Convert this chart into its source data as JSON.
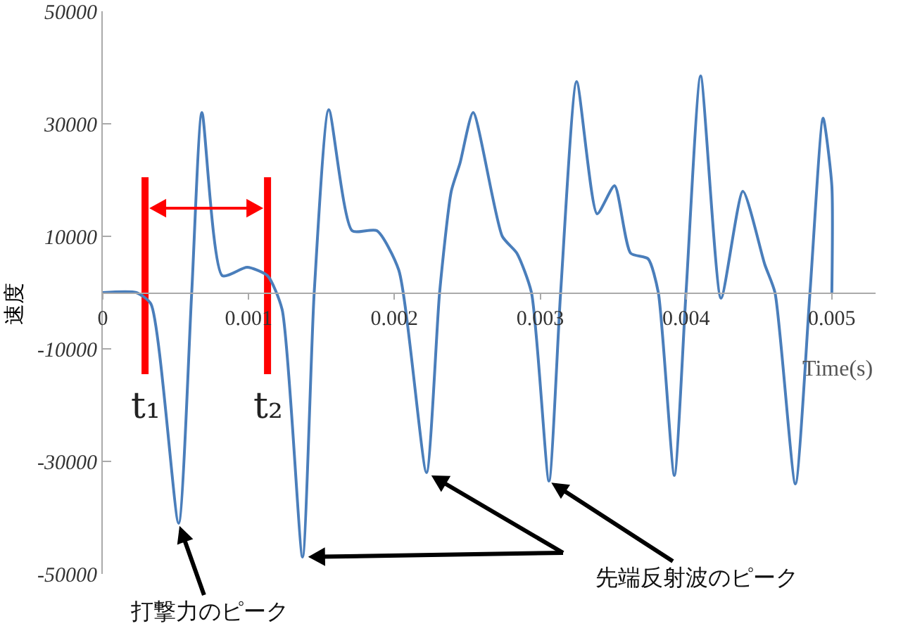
{
  "chart_data": {
    "type": "line",
    "ylabel": "速度",
    "xlabel": "Time(s)",
    "x": [
      0,
      0.00023,
      0.00033,
      0.00052,
      0.00061,
      0.00068,
      0.00082,
      0.00099,
      0.00113,
      0.00123,
      0.00137,
      0.00145,
      0.00155,
      0.00171,
      0.00188,
      0.00203,
      0.00222,
      0.00231,
      0.00239,
      0.00245,
      0.00254,
      0.00274,
      0.00284,
      0.00294,
      0.00306,
      0.00314,
      0.00325,
      0.00339,
      0.00351,
      0.00362,
      0.00374,
      0.00381,
      0.00392,
      0.004,
      0.0041,
      0.00424,
      0.00439,
      0.00454,
      0.00461,
      0.00475,
      0.00485,
      0.00494,
      0.005,
      0.005
    ],
    "series": [
      {
        "color": "#4a7ebb",
        "values": [
          0,
          0,
          -2000,
          -41000,
          0,
          32000,
          3000,
          4500,
          3000,
          -3000,
          -47000,
          0,
          32500,
          11000,
          11000,
          4000,
          -32000,
          0,
          18000,
          23000,
          32000,
          10000,
          7000,
          0,
          -33500,
          0,
          37500,
          14000,
          19000,
          7000,
          6000,
          0,
          -32500,
          0,
          38500,
          -1000,
          18000,
          5000,
          0,
          -34000,
          0,
          31000,
          19000,
          0
        ]
      }
    ],
    "xlim": [
      0,
      0.0053
    ],
    "ylim": [
      -50000,
      50000
    ],
    "xticks": [
      0,
      0.001,
      0.002,
      0.003,
      0.004,
      0.005
    ],
    "yticks": [
      50000,
      30000,
      10000,
      -10000,
      -30000,
      -50000
    ],
    "grid": false,
    "marker": "none",
    "line_style": "solid",
    "ref_lines": [
      {
        "axis": "x",
        "value": 0.00029,
        "label": "t₁",
        "color": "#ff0000"
      },
      {
        "axis": "x",
        "value": 0.00113,
        "label": "t₂",
        "color": "#ff0000"
      }
    ],
    "annotations": [
      {
        "text": "打撃力のピーク",
        "x": 0.00052,
        "y": -41000
      },
      {
        "text": "先端反射波のピーク",
        "x": 0.00306,
        "y": -33500
      }
    ]
  }
}
